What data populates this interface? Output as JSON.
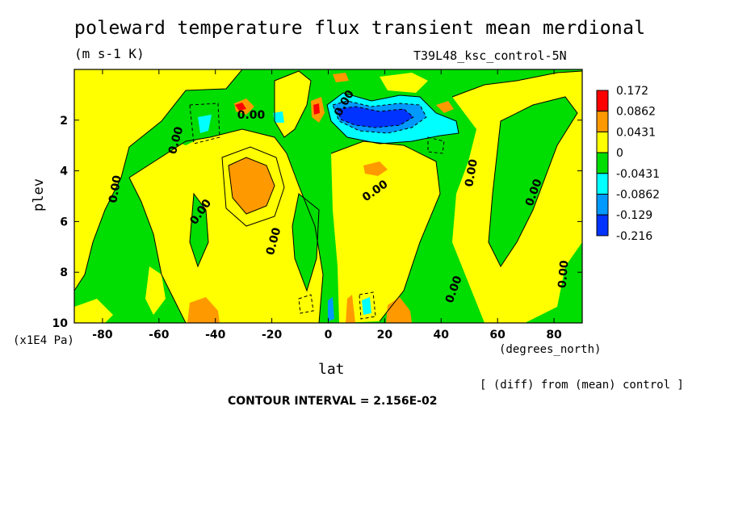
{
  "chart_data": {
    "type": "contour",
    "title": "poleward temperature flux transient mean merdional",
    "units": "(m s-1 K)",
    "run_label": "T39L48_ksc_control-5N",
    "xlabel": "lat",
    "xunits": "(degrees_north)",
    "ylabel": "plev",
    "yunits": "(x1E4 Pa)",
    "xlim": [
      -90,
      90
    ],
    "ylim": [
      10,
      0
    ],
    "x_ticks": [
      "-80",
      "-60",
      "-40",
      "-20",
      "0",
      "20",
      "40",
      "60",
      "80"
    ],
    "x_tick_values": [
      -80,
      -60,
      -40,
      -20,
      0,
      20,
      40,
      60,
      80
    ],
    "y_ticks": [
      "2",
      "4",
      "6",
      "8",
      "10"
    ],
    "y_tick_values": [
      2,
      4,
      6,
      8,
      10
    ],
    "contour_interval_text": "CONTOUR INTERVAL = 2.156E-02",
    "note": "[ (diff) from (mean) control ]",
    "contour_labels": [
      "0.00",
      "0.00",
      "0.00",
      "0.00",
      "0.00",
      "0.00",
      "0.00",
      "0.00",
      "0.00",
      "0.00",
      "0.00"
    ],
    "legend": {
      "levels": [
        "0.172",
        "0.0862",
        "0.0431",
        "0",
        "-0.0431",
        "-0.0862",
        "-0.129",
        "-0.216"
      ],
      "colors": [
        "#ff0000",
        "#ff9900",
        "#ffff00",
        "#00dd00",
        "#00ffff",
        "#0099ff",
        "#0033ff"
      ]
    },
    "fill_colors": {
      "positive_low": "#ffff00",
      "positive_mid": "#ff9900",
      "negative_low": "#00dd00",
      "negative_mid": "#00ffff",
      "negative_high": "#0099ff",
      "negative_max": "#0033ff"
    }
  }
}
